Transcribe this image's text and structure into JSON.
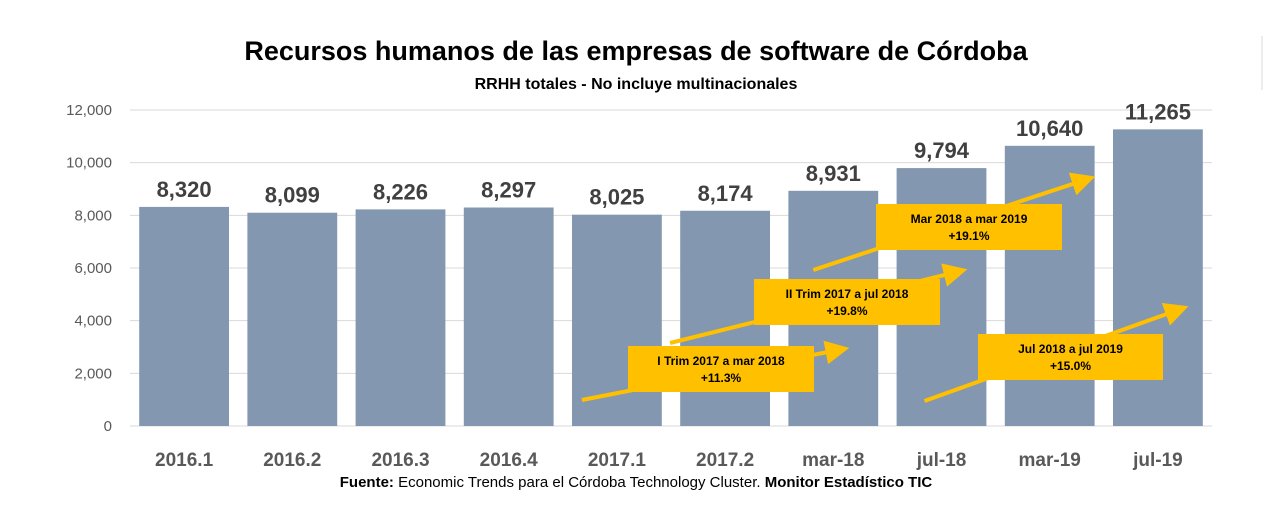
{
  "colors": {
    "bar": "#8497b0",
    "annotation_box": "#ffc000",
    "arrow": "#ffc000",
    "grid": "#d9d9d9",
    "axis_text": "#595959",
    "data_label": "#404040"
  },
  "chart_data": {
    "type": "bar",
    "title": "Recursos humanos de las empresas de software de Córdoba",
    "subtitle": "RRHH totales - No incluye multinacionales",
    "categories": [
      "2016.1",
      "2016.2",
      "2016.3",
      "2016.4",
      "2017.1",
      "2017.2",
      "mar-18",
      "jul-18",
      "mar-19",
      "jul-19"
    ],
    "values": [
      8320,
      8099,
      8226,
      8297,
      8025,
      8174,
      8931,
      9794,
      10640,
      11265
    ],
    "data_labels": [
      "8,320",
      "8,099",
      "8,226",
      "8,297",
      "8,025",
      "8,174",
      "8,931",
      "9,794",
      "10,640",
      "11,265"
    ],
    "ylim": [
      0,
      12000
    ],
    "yticks": [
      0,
      2000,
      4000,
      6000,
      8000,
      10000,
      12000
    ],
    "ytick_labels": [
      "0",
      "2,000",
      "4,000",
      "6,000",
      "8,000",
      "10,000",
      "12,000"
    ],
    "grid": true,
    "legend": "none",
    "annotations": [
      {
        "line1": "I Trim 2017 a mar 2018",
        "line2": "+11.3%",
        "from": "2017.1",
        "to": "mar-18"
      },
      {
        "line1": "II Trim 2017 a jul 2018",
        "line2": "+19.8%",
        "from": "2017.2",
        "to": "jul-18"
      },
      {
        "line1": "Mar 2018 a mar 2019",
        "line2": "+19.1%",
        "from": "mar-18",
        "to": "mar-19"
      },
      {
        "line1": "Jul 2018 a jul 2019",
        "line2": "+15.0%",
        "from": "jul-18",
        "to": "jul-19"
      }
    ]
  },
  "source": {
    "label": "Fuente:",
    "text": " Economic Trends para el Córdoba Technology Cluster. ",
    "bold_tail": "Monitor Estadístico TIC"
  }
}
